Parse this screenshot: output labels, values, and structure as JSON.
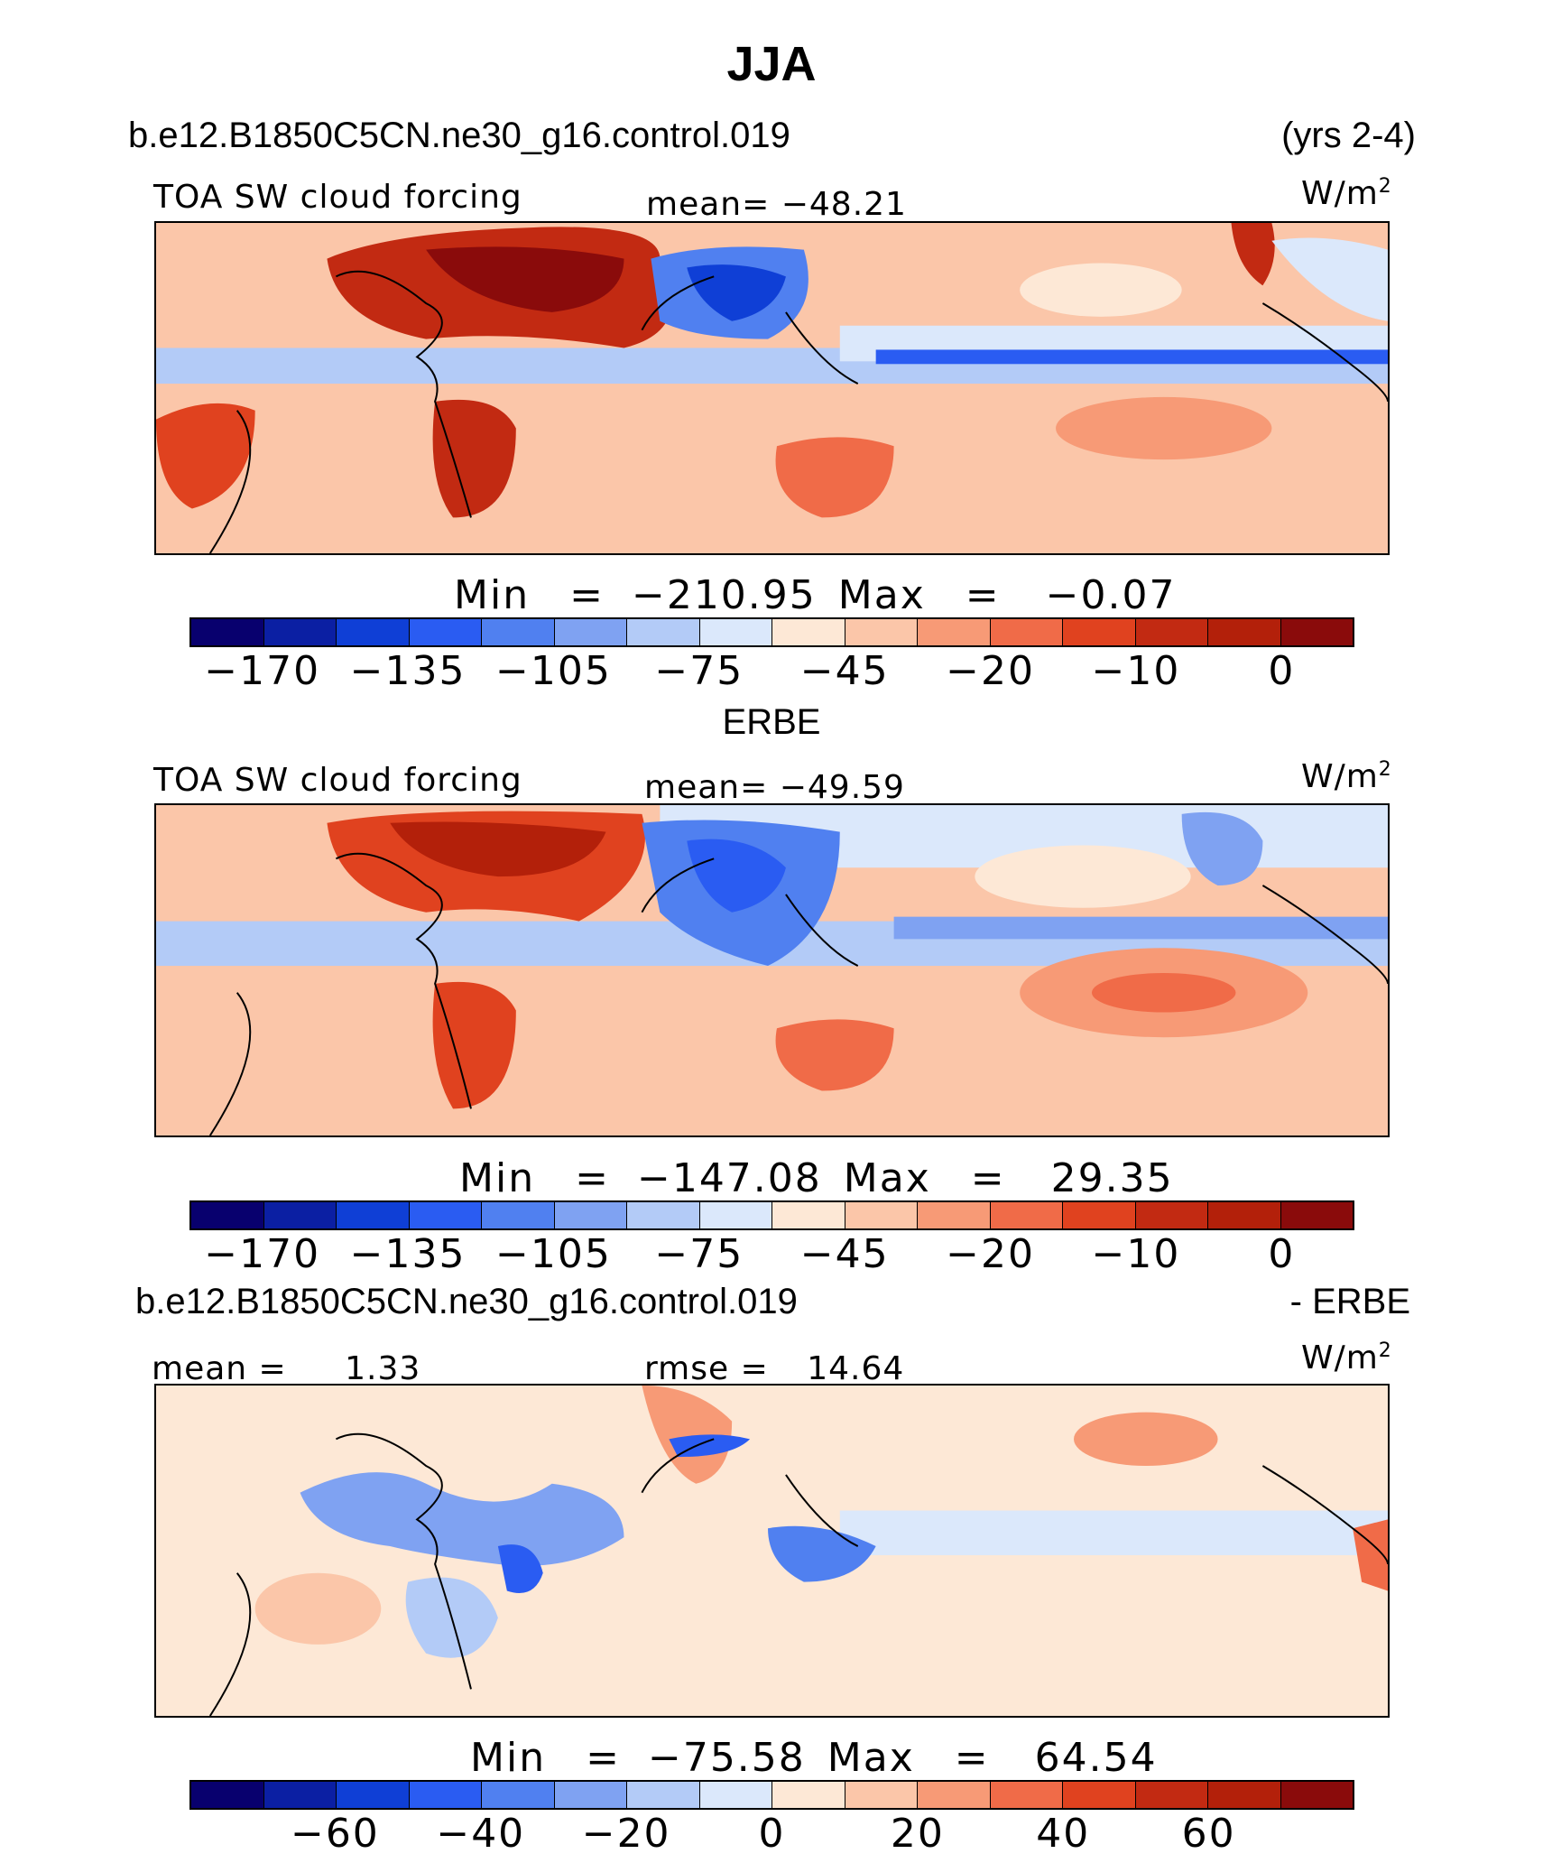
{
  "title": "JJA",
  "case_name": "b.e12.B1850C5CN.ne30_g16.control.019",
  "years": "(yrs 2-4)",
  "obs_name": "ERBE",
  "diff_suffix": "- ERBE",
  "colors": [
    "#08006e",
    "#0b1fa3",
    "#0f3fd6",
    "#2a5cf2",
    "#5080f0",
    "#7fa2f2",
    "#b3cbf7",
    "#dbe8fb",
    "#fde8d6",
    "#fbc6a9",
    "#f79a76",
    "#f06b48",
    "#e0421f",
    "#c22a12",
    "#b3200a",
    "#8a0b0b"
  ],
  "panels": [
    {
      "variable": "TOA SW cloud forcing",
      "mean_label": "mean=",
      "mean_value": "−48.21",
      "units_base": "W/m",
      "units_exp": "2",
      "min_label": "Min",
      "min_value": "−210.95",
      "max_label": "Max",
      "max_value": "−0.07",
      "ticks": [
        "−170",
        "−135",
        "−105",
        "−75",
        "−45",
        "−20",
        "−10",
        "0"
      ]
    },
    {
      "variable": "TOA SW cloud forcing",
      "mean_label": "mean=",
      "mean_value": "−49.59",
      "units_base": "W/m",
      "units_exp": "2",
      "min_label": "Min",
      "min_value": "−147.08",
      "max_label": "Max",
      "max_value": "29.35",
      "ticks": [
        "−170",
        "−135",
        "−105",
        "−75",
        "−45",
        "−20",
        "−10",
        "0"
      ]
    },
    {
      "mean_label": "mean =",
      "mean_value": "1.33",
      "rmse_label": "rmse =",
      "rmse_value": "14.64",
      "units_base": "W/m",
      "units_exp": "2",
      "min_label": "Min",
      "min_value": "−75.58",
      "max_label": "Max",
      "max_value": "64.54",
      "ticks": [
        "−60",
        "−40",
        "−20",
        "0",
        "20",
        "40",
        "60"
      ]
    }
  ],
  "chart_data": [
    {
      "type": "heatmap",
      "title": "TOA SW cloud forcing",
      "subtitle": "b.e12.B1850C5CN.ne30_g16.control.019",
      "units": "W/m2",
      "mean": -48.21,
      "min": -210.95,
      "max": -0.07,
      "colorbar_ticks": [
        -170,
        -135,
        -105,
        -75,
        -45,
        -20,
        -10,
        0
      ]
    },
    {
      "type": "heatmap",
      "title": "TOA SW cloud forcing",
      "subtitle": "ERBE",
      "units": "W/m2",
      "mean": -49.59,
      "min": -147.08,
      "max": 29.35,
      "colorbar_ticks": [
        -170,
        -135,
        -105,
        -75,
        -45,
        -20,
        -10,
        0
      ]
    },
    {
      "type": "heatmap",
      "subtitle": "b.e12.B1850C5CN.ne30_g16.control.019 - ERBE",
      "units": "W/m2",
      "mean": 1.33,
      "rmse": 14.64,
      "min": -75.58,
      "max": 64.54,
      "colorbar_ticks": [
        -60,
        -40,
        -20,
        0,
        20,
        40,
        60
      ]
    }
  ]
}
